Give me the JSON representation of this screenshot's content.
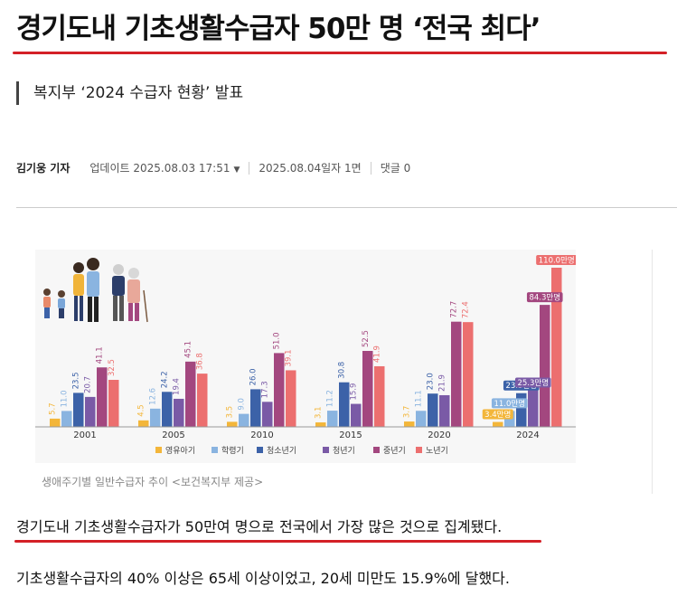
{
  "article": {
    "headline": "경기도내 기초생활수급자 50만 명 ‘전국 최다’",
    "subtitle": "복지부 ‘2024 수급자 현황’ 발표",
    "author": "김기웅 기자",
    "updated": "업데이트 2025.08.03 17:51",
    "edition": "2025.08.04일자 1면",
    "comments": "댓글 0",
    "caption": "생애주기별 일반수급자 추이 <보건복지부 제공>",
    "paragraph1": "경기도내 기초생활수급자가 50만여 명으로 전국에서 가장 많은 것으로 집계됐다.",
    "paragraph2": "기초생활수급자의 40% 이상은 65세 이상이었고, 20세 미만도 15.9%에 달했다."
  },
  "colors": {
    "accent": "#d42027",
    "infant": "#f3b63a",
    "school": "#8ab4e0",
    "youth": "#3c62a8",
    "young_adult": "#7a5aa6",
    "middle_age": "#a3477f",
    "senior": "#ec6f6f"
  },
  "chart_data": {
    "type": "bar",
    "categories": [
      "2001",
      "2005",
      "2010",
      "2015",
      "2020",
      "2024"
    ],
    "unit": "만명",
    "series": [
      {
        "name": "영유아기",
        "color": "#f3b63a",
        "values": [
          5.7,
          4.5,
          3.5,
          3.1,
          3.7,
          3.4
        ]
      },
      {
        "name": "학령기",
        "color": "#8ab4e0",
        "values": [
          11.0,
          12.6,
          9.0,
          11.2,
          11.1,
          11.0
        ]
      },
      {
        "name": "청소년기",
        "color": "#3c62a8",
        "values": [
          23.5,
          24.2,
          26.0,
          30.8,
          23.0,
          23.3
        ]
      },
      {
        "name": "청년기",
        "color": "#7a5aa6",
        "values": [
          20.7,
          19.4,
          17.3,
          15.9,
          21.9,
          25.3
        ]
      },
      {
        "name": "중년기",
        "color": "#a3477f",
        "values": [
          41.1,
          45.1,
          51.0,
          52.5,
          72.7,
          84.3
        ]
      },
      {
        "name": "노년기",
        "color": "#ec6f6f",
        "values": [
          32.5,
          36.8,
          39.1,
          41.9,
          72.4,
          110.0
        ]
      }
    ],
    "labels_2001_2020": [
      [
        "5.7",
        "11.0",
        "23.5",
        "20.7",
        "41.1",
        "32.5"
      ],
      [
        "4.5",
        "12.6",
        "24.2",
        "19.4",
        "45.1",
        "36.8"
      ],
      [
        "3.5",
        "9.0",
        "26.0",
        "17.3",
        "51.0",
        "39.1"
      ],
      [
        "3.1",
        "11.2",
        "30.8",
        "15.9",
        "52.5",
        "41.9"
      ],
      [
        "3.7",
        "11.1",
        "23.0",
        "21.9",
        "72.7",
        "72.4"
      ]
    ],
    "labels_2024": [
      "3.4만명",
      "11.0만명",
      "23.3만명",
      "25.3만명",
      "84.3만명",
      "110.0만명"
    ],
    "ylim": [
      0,
      115
    ],
    "legend": "bottom",
    "grid": false
  }
}
